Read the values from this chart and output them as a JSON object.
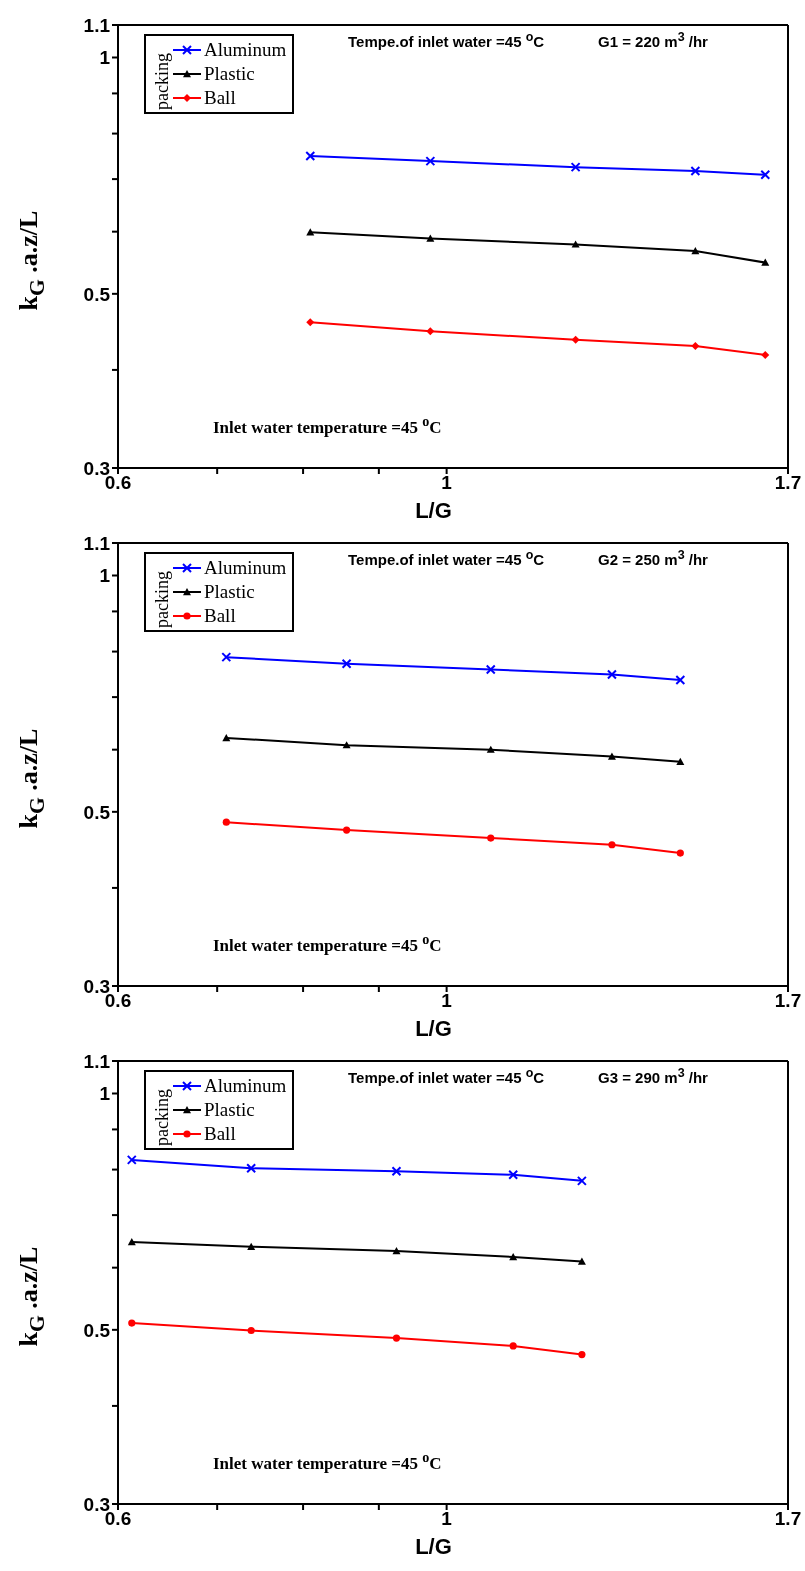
{
  "chart_data": [
    {
      "type": "line",
      "xlabel": "L/G",
      "ylabel": "k$_{G}$ .a.z/L",
      "legend_title": "packing",
      "legend": "top left",
      "log": "xy",
      "xlim": [
        0.6,
        1.7
      ],
      "xticks": [
        0.6,
        {
          "value": 0.7,
          "label": null
        },
        {
          "value": 0.8,
          "label": null
        },
        {
          "value": 0.9,
          "label": null
        },
        1,
        1.7
      ],
      "ylim": [
        0.3,
        1.1
      ],
      "yticks": [
        0.3,
        {
          "value": 0.4,
          "label": null
        },
        0.5,
        {
          "value": 0.6,
          "label": null
        },
        {
          "value": 0.7,
          "label": null
        },
        {
          "value": 0.8,
          "label": null
        },
        {
          "value": 0.9,
          "label": null
        },
        1,
        1.1
      ],
      "annotations": [
        "Tempe.of inlet water =45 $^{o}$C",
        "G1 = 220 m$^{3}$ /hr",
        "Inlet water temperature =45 $^{o}$C"
      ],
      "x": [
        0.809,
        0.975,
        1.222,
        1.472,
        1.641
      ],
      "series": [
        {
          "name": "Aluminum",
          "color": "#0000ff",
          "marker": "cross",
          "values": [
            0.749,
            0.738,
            0.725,
            0.717,
            0.709
          ]
        },
        {
          "name": "Plastic",
          "color": "#000000",
          "marker": "triangle",
          "values": [
            0.599,
            0.588,
            0.578,
            0.567,
            0.548
          ]
        },
        {
          "name": "Ball",
          "color": "#ff0000",
          "marker": "diamond",
          "values": [
            0.46,
            0.448,
            0.437,
            0.429,
            0.418
          ]
        }
      ]
    },
    {
      "type": "line",
      "xlabel": "L/G",
      "ylabel": "k$_{G}$ .a.z/L",
      "legend_title": "packing",
      "legend": "top left",
      "log": "xy",
      "xlim": [
        0.6,
        1.7
      ],
      "xticks": [
        0.6,
        {
          "value": 0.7,
          "label": null
        },
        {
          "value": 0.8,
          "label": null
        },
        {
          "value": 0.9,
          "label": null
        },
        1,
        1.7
      ],
      "ylim": [
        0.3,
        1.1
      ],
      "yticks": [
        0.3,
        {
          "value": 0.4,
          "label": null
        },
        0.5,
        {
          "value": 0.6,
          "label": null
        },
        {
          "value": 0.7,
          "label": null
        },
        {
          "value": 0.8,
          "label": null
        },
        {
          "value": 0.9,
          "label": null
        },
        1,
        1.1
      ],
      "annotations": [
        "Tempe.of inlet water =45 $^{o}$C",
        "G2 = 250 m$^{3}$ /hr",
        "Inlet water temperature =45 $^{o}$C"
      ],
      "x": [
        0.71,
        0.856,
        1.071,
        1.293,
        1.438
      ],
      "series": [
        {
          "name": "Aluminum",
          "color": "#0000ff",
          "marker": "cross",
          "values": [
            0.787,
            0.772,
            0.759,
            0.748,
            0.736
          ]
        },
        {
          "name": "Plastic",
          "color": "#000000",
          "marker": "triangle",
          "values": [
            0.621,
            0.608,
            0.6,
            0.588,
            0.579
          ]
        },
        {
          "name": "Ball",
          "color": "#ff0000",
          "marker": "circle",
          "values": [
            0.485,
            0.474,
            0.463,
            0.454,
            0.443
          ]
        }
      ]
    },
    {
      "type": "line",
      "xlabel": "L/G",
      "ylabel": "k$_{G}$ .a.z/L",
      "legend_title": "packing",
      "legend": "top left",
      "log": "xy",
      "xlim": [
        0.6,
        1.7
      ],
      "xticks": [
        0.6,
        {
          "value": 0.7,
          "label": null
        },
        {
          "value": 0.8,
          "label": null
        },
        {
          "value": 0.9,
          "label": null
        },
        1,
        1.7
      ],
      "ylim": [
        0.3,
        1.1
      ],
      "yticks": [
        0.3,
        {
          "value": 0.4,
          "label": null
        },
        0.5,
        {
          "value": 0.6,
          "label": null
        },
        {
          "value": 0.7,
          "label": null
        },
        {
          "value": 0.8,
          "label": null
        },
        {
          "value": 0.9,
          "label": null
        },
        1,
        1.1
      ],
      "annotations": [
        "Tempe.of inlet water =45 $^{o}$C",
        "G3 = 290 m$^{3}$ /hr",
        "Inlet water temperature =45 $^{o}$C"
      ],
      "x": [
        0.613,
        0.738,
        0.925,
        1.109,
        1.234
      ],
      "series": [
        {
          "name": "Aluminum",
          "color": "#0000ff",
          "marker": "cross",
          "values": [
            0.823,
            0.803,
            0.796,
            0.788,
            0.774
          ]
        },
        {
          "name": "Plastic",
          "color": "#000000",
          "marker": "triangle",
          "values": [
            0.647,
            0.638,
            0.63,
            0.619,
            0.611
          ]
        },
        {
          "name": "Ball",
          "color": "#ff0000",
          "marker": "circle",
          "values": [
            0.51,
            0.499,
            0.488,
            0.477,
            0.465
          ]
        }
      ]
    }
  ]
}
